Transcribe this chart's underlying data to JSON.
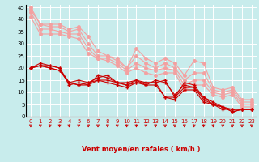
{
  "xlabel": "Vent moyen/en rafales ( km/h )",
  "background_color": "#c8ecec",
  "xlim": [
    -0.5,
    23.5
  ],
  "ylim": [
    0,
    46
  ],
  "yticks": [
    0,
    5,
    10,
    15,
    20,
    25,
    30,
    35,
    40,
    45
  ],
  "xticks": [
    0,
    1,
    2,
    3,
    4,
    5,
    6,
    7,
    8,
    9,
    10,
    11,
    12,
    13,
    14,
    15,
    16,
    17,
    18,
    19,
    20,
    21,
    22,
    23
  ],
  "line_light1": [
    45,
    38,
    38,
    38,
    36,
    37,
    33,
    27,
    25,
    24,
    20,
    28,
    24,
    22,
    24,
    22,
    17,
    23,
    22,
    12,
    11,
    12,
    7,
    7
  ],
  "line_light2": [
    44,
    38,
    37,
    37,
    35,
    36,
    30,
    25,
    25,
    23,
    20,
    25,
    22,
    20,
    22,
    20,
    15,
    18,
    18,
    11,
    10,
    11,
    6,
    6
  ],
  "line_light3": [
    43,
    36,
    36,
    35,
    34,
    34,
    28,
    24,
    24,
    22,
    19,
    22,
    20,
    19,
    20,
    19,
    13,
    15,
    15,
    10,
    9,
    10,
    5,
    5
  ],
  "line_light4": [
    41,
    34,
    34,
    34,
    33,
    32,
    26,
    24,
    23,
    21,
    18,
    20,
    18,
    17,
    18,
    18,
    11,
    13,
    13,
    9,
    8,
    9,
    4,
    4
  ],
  "line_dark1": [
    20,
    21,
    21,
    20,
    14,
    15,
    14,
    16,
    17,
    14,
    14,
    15,
    14,
    14,
    15,
    8,
    14,
    13,
    8,
    6,
    4,
    2,
    3,
    3
  ],
  "line_dark2": [
    20,
    22,
    21,
    20,
    13,
    14,
    13,
    17,
    16,
    14,
    13,
    15,
    13,
    15,
    14,
    9,
    13,
    12,
    8,
    5,
    4,
    2,
    3,
    3
  ],
  "line_dark3": [
    20,
    21,
    20,
    19,
    14,
    13,
    14,
    15,
    15,
    14,
    13,
    14,
    14,
    14,
    8,
    8,
    12,
    12,
    7,
    5,
    4,
    3,
    3,
    3
  ],
  "line_dark4": [
    20,
    21,
    20,
    19,
    14,
    13,
    13,
    15,
    14,
    13,
    12,
    14,
    13,
    13,
    8,
    7,
    11,
    11,
    6,
    5,
    3,
    3,
    3,
    3
  ],
  "color_light": "#f4a0a0",
  "color_dark": "#cc0000",
  "linewidth": 0.8,
  "markersize_light": 2.5,
  "markersize_dark": 2.5,
  "arrow_color": "#cc0000",
  "tick_fontsize": 5,
  "xlabel_fontsize": 6
}
